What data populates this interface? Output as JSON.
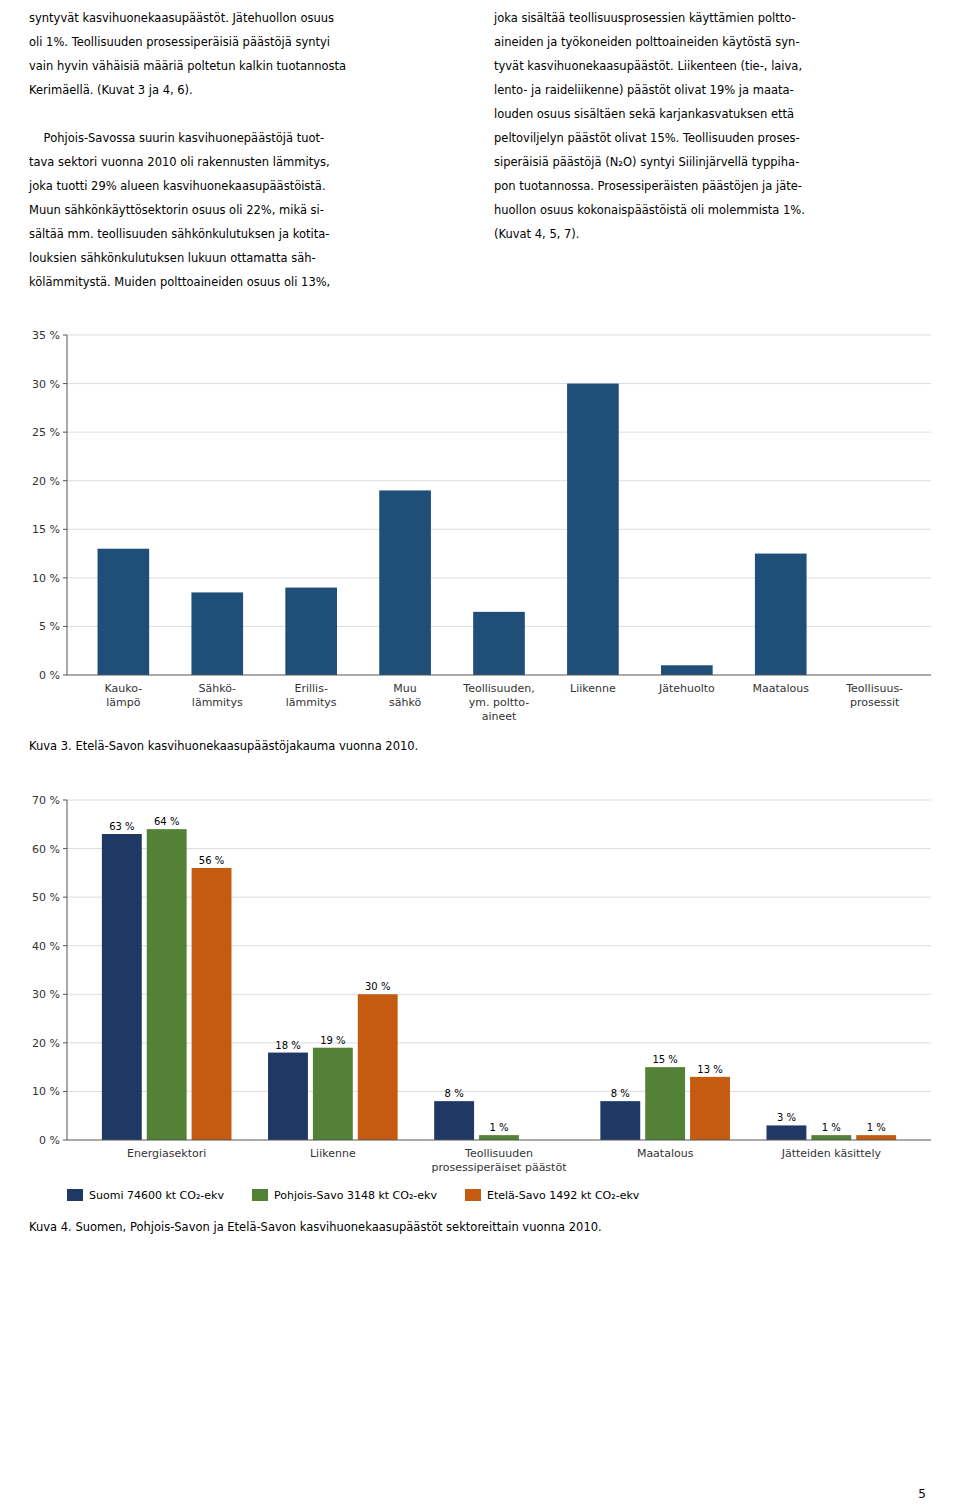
{
  "text_left": [
    "syntyvät kasvihuonekaasupäästöt. Jätehuollon osuus",
    "oli 1%. Teollisuuden prosessiperäisiä päästöjä syntyi",
    "vain hyvin vähäisiä määriä poltetun kalkin tuotannosta",
    "Kerimäellä. (Kuvat 3 ja 4, 6).",
    "",
    "    Pohjois-Savossa suurin kasvihuonepäästöjä tuot-",
    "tava sektori vuonna 2010 oli rakennusten lämmitys,",
    "joka tuotti 29% alueen kasvihuonekaasupäästöistä.",
    "Muun sähkönkäyttösektorin osuus oli 22%, mikä si-",
    "sältää mm. teollisuuden sähkönkulutuksen ja kotita-",
    "louksien sähkönkulutuksen lukuun ottamatta säh-",
    "kölämmitystä. Muiden polttoaineiden osuus oli 13%,"
  ],
  "text_right": [
    "joka sisältää teollisuusprosessien käyttämien poltto-",
    "aineiden ja työkoneiden polttoaineiden käytöstä syn-",
    "tyvät kasvihuonekaasupäästöt. Liikenteen (tie-, laiva,",
    "lento- ja raideliikenne) päästöt olivat 19% ja maata-",
    "louden osuus sisältäen sekä karjankasvatuksen että",
    "peltoviljelyn päästöt olivat 15%. Teollisuuden proses-",
    "siperäisiä päästöjä (N₂O) syntyi Siilinjärvellä typpiha-",
    "pon tuotannossa. Prosessiperäisten päästöjen ja jäte-",
    "huollon osuus kokonaispäästöistä oli molemmista 1%.",
    "(Kuvat 4, 5, 7)."
  ],
  "page_number": "5",
  "chart_data": [
    {
      "type": "bar",
      "title": "Kuva 3. Etelä-Savon kasvihuonekaasupäästöjakauma vuonna 2010.",
      "categories": [
        "Kauko-\nlämpö",
        "Sähkö-\nlämmitys",
        "Erillis-\nlämmitys",
        "Muu\nsähkö",
        "Teollisuuden,\nym. poltto-\naineet",
        "Liikenne",
        "Jätehuolto",
        "Maatalous",
        "Teollisuus-\nprosessit"
      ],
      "values": [
        13,
        8.5,
        9,
        19,
        6.5,
        30,
        1,
        12.5,
        0
      ],
      "color": "#1F4E79",
      "ylim": [
        0,
        35
      ],
      "yticks": [
        {
          "value": 0,
          "label": "0 %"
        },
        {
          "value": 5,
          "label": "5 %"
        },
        {
          "value": 10,
          "label": "10 %"
        },
        {
          "value": 15,
          "label": "15 %"
        },
        {
          "value": 20,
          "label": "20 %"
        },
        {
          "value": 25,
          "label": "25 %"
        },
        {
          "value": 30,
          "label": "30 %"
        },
        {
          "value": 35,
          "label": "35 %"
        }
      ],
      "grid": true
    },
    {
      "type": "bar",
      "title": "Kuva 4. Suomen, Pohjois-Savon ja Etelä-Savon kasvihuonekaasupäästöt sektoreittain vuonna 2010.",
      "categories": [
        "Energiasektori",
        "Liikenne",
        "Teollisuuden\nprosessiperäiset päästöt",
        "Maatalous",
        "Jätteiden käsittely"
      ],
      "series": [
        {
          "name": "Suomi 74600 kt CO₂-ekv",
          "color": "#1F3864",
          "values": [
            63,
            18,
            8,
            8,
            3
          ],
          "value_labels": [
            "63 %",
            "18 %",
            "8 %",
            "8 %",
            "3 %"
          ]
        },
        {
          "name": "Pohjois-Savo 3148 kt CO₂-ekv",
          "color": "#538135",
          "values": [
            64,
            19,
            1,
            15,
            1
          ],
          "value_labels": [
            "64 %",
            "19 %",
            "1 %",
            "15 %",
            "1 %"
          ]
        },
        {
          "name": "Etelä-Savo 1492 kt CO₂-ekv",
          "color": "#C55A11",
          "values": [
            56,
            30,
            0,
            13,
            1
          ],
          "value_labels": [
            "56 %",
            "30 %",
            null,
            "13 %",
            "1 %"
          ]
        }
      ],
      "ylim": [
        0,
        70
      ],
      "yticks": [
        {
          "value": 0,
          "label": "0 %"
        },
        {
          "value": 10,
          "label": "10 %"
        },
        {
          "value": 20,
          "label": "20 %"
        },
        {
          "value": 30,
          "label": "30 %"
        },
        {
          "value": 40,
          "label": "40 %"
        },
        {
          "value": 50,
          "label": "50 %"
        },
        {
          "value": 60,
          "label": "60 %"
        },
        {
          "value": 70,
          "label": "70 %"
        }
      ],
      "grid": true,
      "data_labels": true,
      "legend": "bottom"
    }
  ]
}
